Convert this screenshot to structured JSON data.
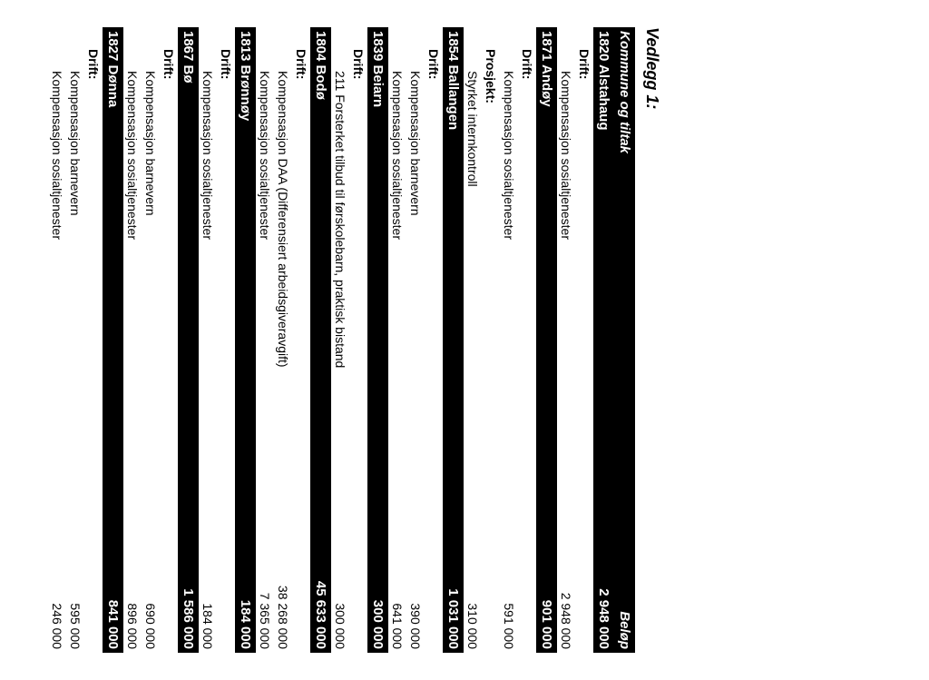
{
  "title": "Vedlegg 1:",
  "header": {
    "col1": "Kommune og tiltak",
    "col2": "Beløp"
  },
  "labels": {
    "drift": "Drift:",
    "prosjekt": "Prosjekt:"
  },
  "municipalities": [
    {
      "code": "1820",
      "name": "Alstahaug",
      "total": "2 948 000",
      "groups": [
        {
          "type": "drift",
          "items": [
            {
              "text": "Kompensasjon sosialtjenester",
              "amount": "2 948 000"
            }
          ]
        }
      ]
    },
    {
      "code": "1871",
      "name": "Andøy",
      "total": "901 000",
      "groups": [
        {
          "type": "drift",
          "items": [
            {
              "text": "Kompensasjon sosialtjenester",
              "amount": "591 000"
            }
          ]
        },
        {
          "type": "prosjekt",
          "items": [
            {
              "text": "Styrket internkontroll",
              "amount": "310 000"
            }
          ]
        }
      ]
    },
    {
      "code": "1854",
      "name": "Ballangen",
      "total": "1 031 000",
      "groups": [
        {
          "type": "drift",
          "items": [
            {
              "text": "Kompensasjon barnevern",
              "amount": "390 000"
            },
            {
              "text": "Kompensasjon sosialtjenester",
              "amount": "641 000"
            }
          ]
        }
      ]
    },
    {
      "code": "1839",
      "name": "Beiarn",
      "total": "300 000",
      "groups": [
        {
          "type": "drift",
          "items": [
            {
              "text": "211 Forsterket tilbud til førskolebarn, praktisk bistand",
              "amount": "300 000"
            }
          ]
        }
      ]
    },
    {
      "code": "1804",
      "name": "Bodø",
      "total": "45 633 000",
      "groups": [
        {
          "type": "drift",
          "items": [
            {
              "text": "Kompensasjon DAA (Differensiert arbeidsgiveravgift)",
              "amount": "38 268 000"
            },
            {
              "text": "Kompensasjon sosialtjenester",
              "amount": "7 365 000"
            }
          ]
        }
      ]
    },
    {
      "code": "1813",
      "name": "Brønnøy",
      "total": "184 000",
      "groups": [
        {
          "type": "drift",
          "items": [
            {
              "text": "Kompensasjon sosialtjenester",
              "amount": "184 000"
            }
          ]
        }
      ]
    },
    {
      "code": "1867",
      "name": "Bø",
      "total": "1 586 000",
      "groups": [
        {
          "type": "drift",
          "items": [
            {
              "text": "Kompensasjon barnevern",
              "amount": "690 000"
            },
            {
              "text": "Kompensasjon sosialtjenester",
              "amount": "896 000"
            }
          ]
        }
      ]
    },
    {
      "code": "1827",
      "name": "Dønna",
      "total": "841 000",
      "groups": [
        {
          "type": "drift",
          "items": [
            {
              "text": "Kompensasjon barnevern",
              "amount": "595 000"
            },
            {
              "text": "Kompensasjon sosialtjenester",
              "amount": "246 000"
            }
          ]
        }
      ]
    }
  ]
}
